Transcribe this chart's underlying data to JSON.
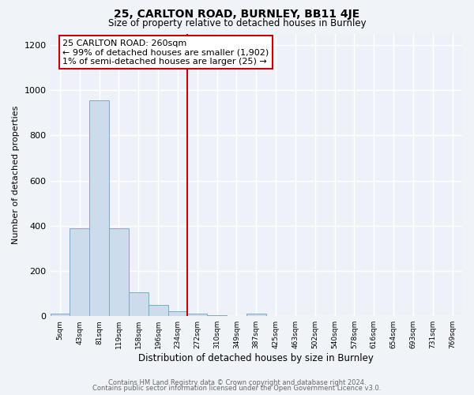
{
  "title": "25, CARLTON ROAD, BURNLEY, BB11 4JE",
  "subtitle": "Size of property relative to detached houses in Burnley",
  "xlabel": "Distribution of detached houses by size in Burnley",
  "ylabel": "Number of detached properties",
  "bin_labels": [
    "5sqm",
    "43sqm",
    "81sqm",
    "119sqm",
    "158sqm",
    "196sqm",
    "234sqm",
    "272sqm",
    "310sqm",
    "349sqm",
    "387sqm",
    "425sqm",
    "463sqm",
    "502sqm",
    "540sqm",
    "578sqm",
    "616sqm",
    "654sqm",
    "693sqm",
    "731sqm",
    "769sqm"
  ],
  "bar_values": [
    10,
    390,
    955,
    390,
    105,
    50,
    20,
    10,
    5,
    0,
    10,
    0,
    0,
    0,
    0,
    0,
    0,
    0,
    0,
    0,
    0
  ],
  "bar_color": "#ccdcec",
  "bar_edge_color": "#7aaac8",
  "vline_x_label": "272sqm",
  "vline_color": "#cc0000",
  "annotation_title": "25 CARLTON ROAD: 260sqm",
  "annotation_line1": "← 99% of detached houses are smaller (1,902)",
  "annotation_line2": "1% of semi-detached houses are larger (25) →",
  "annotation_box_color": "#cc0000",
  "ylim": [
    0,
    1250
  ],
  "yticks": [
    0,
    200,
    400,
    600,
    800,
    1000,
    1200
  ],
  "footer1": "Contains HM Land Registry data © Crown copyright and database right 2024.",
  "footer2": "Contains public sector information licensed under the Open Government Licence v3.0.",
  "bg_color": "#f0f4f8",
  "plot_bg_color": "#eef2f8",
  "grid_color": "#ffffff"
}
